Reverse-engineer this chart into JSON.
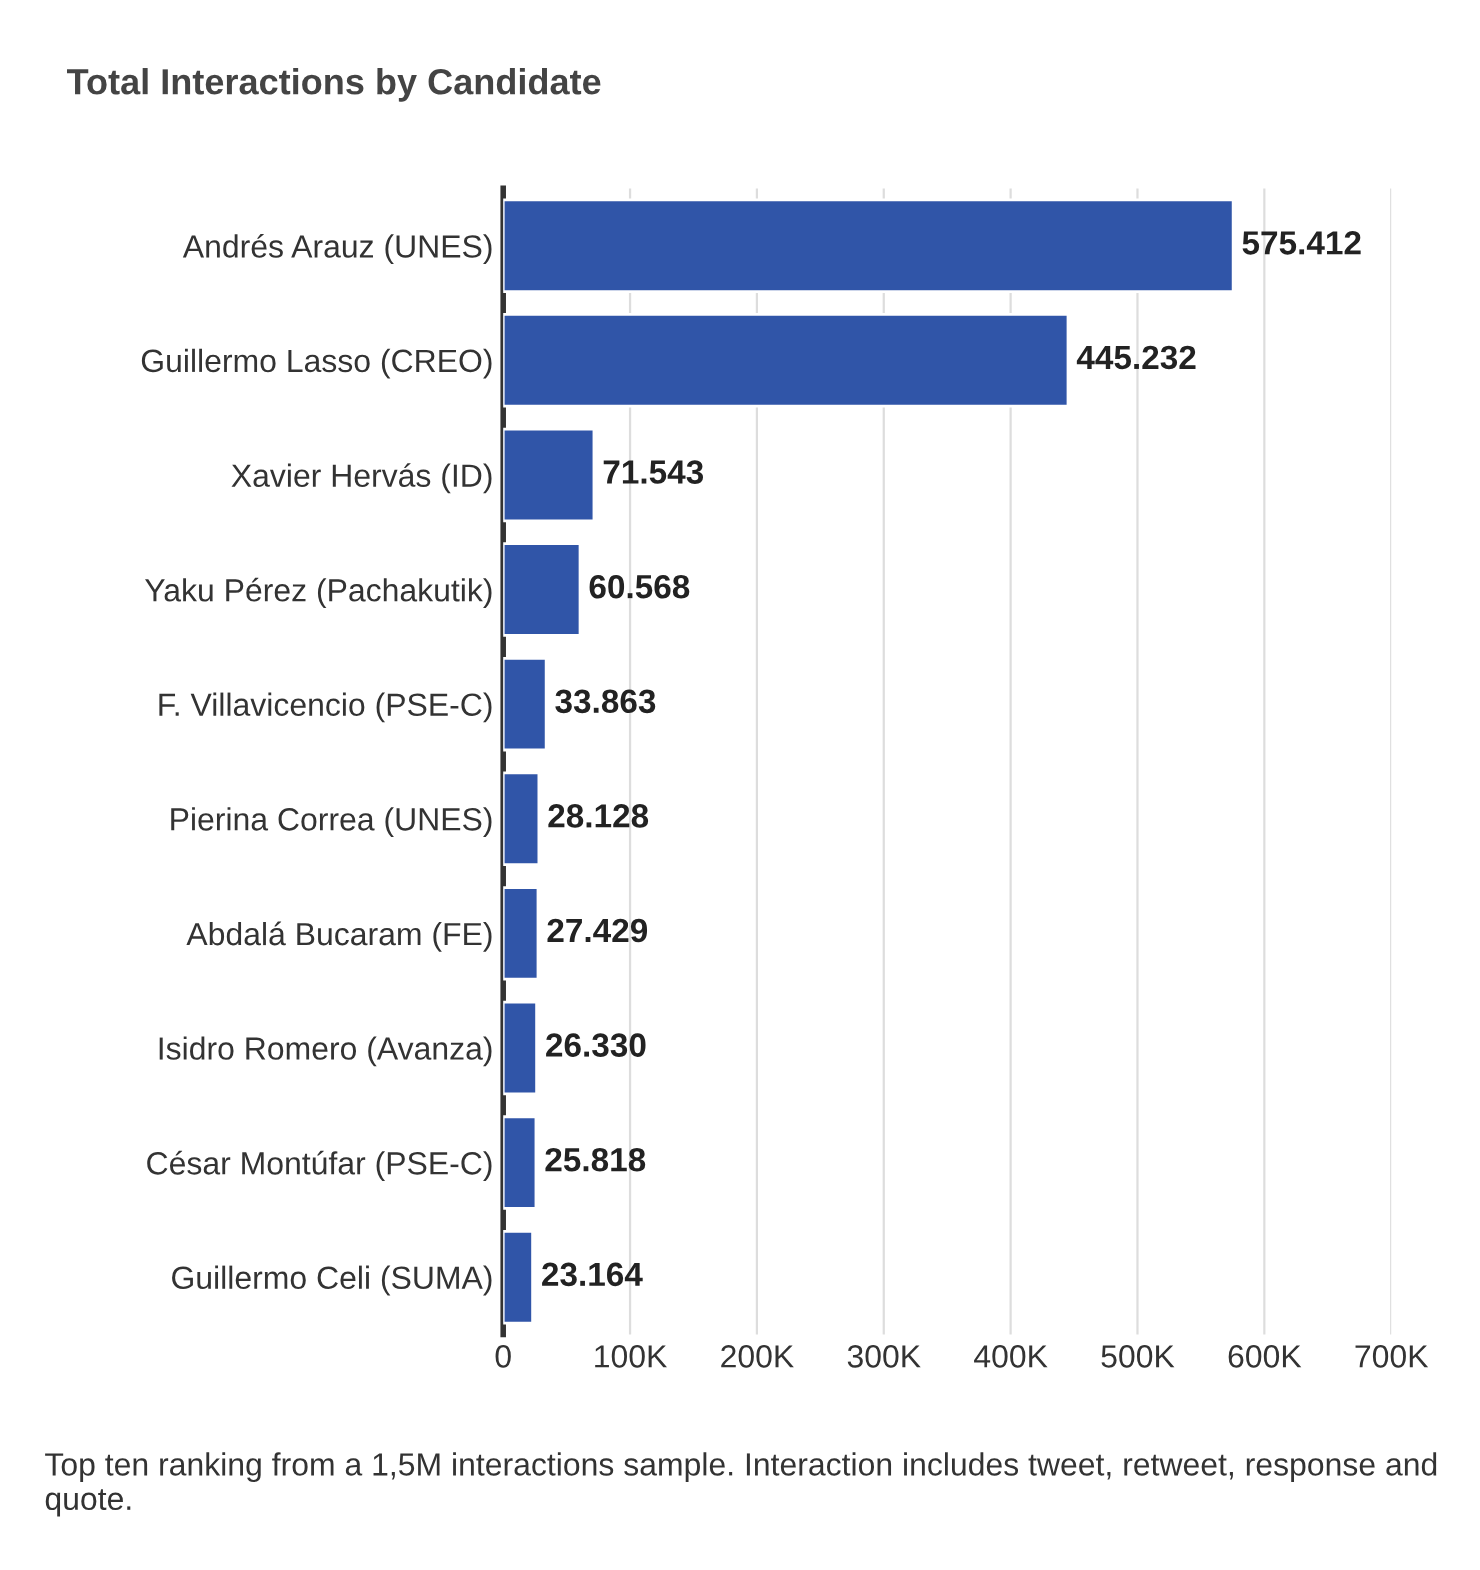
{
  "chart_data": {
    "type": "bar",
    "orientation": "horizontal",
    "title": "Total Interactions by Candidate",
    "categories": [
      "Andrés Arauz (UNES)",
      "Guillermo Lasso (CREO)",
      "Xavier Hervás (ID)",
      "Yaku Pérez (Pachakutik)",
      "F. Villavicencio (PSE-C)",
      "Pierina Correa (UNES)",
      "Abdalá Bucaram (FE)",
      "Isidro Romero (Avanza)",
      "César Montúfar (PSE-C)",
      "Guillermo Celi (SUMA)"
    ],
    "values": [
      575412,
      445232,
      71543,
      60568,
      33863,
      28128,
      27429,
      26330,
      25818,
      23164
    ],
    "value_labels": [
      "575.412",
      "445.232",
      "71.543",
      "60.568",
      "33.863",
      "28.128",
      "27.429",
      "26.330",
      "25.818",
      "23.164"
    ],
    "color": "#3055a8",
    "xlim": [
      0,
      700000
    ],
    "xticks": [
      0,
      {
        "value": 100000,
        "label": "100K"
      },
      {
        "value": 200000,
        "label": "200K"
      },
      {
        "value": 300000,
        "label": "300K"
      },
      {
        "value": 400000,
        "label": "400K"
      },
      {
        "value": 500000,
        "label": "500K"
      },
      {
        "value": 600000,
        "label": "600K"
      },
      {
        "value": 700000,
        "label": "700K"
      }
    ],
    "grid": "x",
    "annotations": [
      "Top ten ranking from a 1,5M interactions sample. Interaction includes tweet, retweet, response and quote."
    ]
  }
}
